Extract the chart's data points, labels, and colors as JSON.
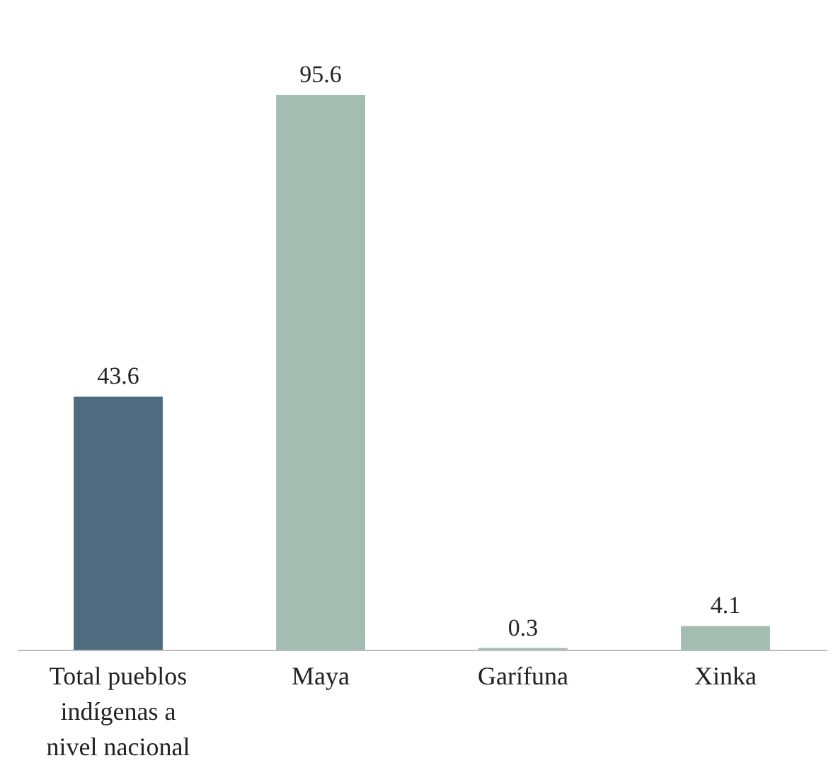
{
  "chart_data": {
    "type": "bar",
    "categories": [
      "Total pueblos indígenas a nivel nacional",
      "Maya",
      "Garífuna",
      "Xinka"
    ],
    "values": [
      43.6,
      95.6,
      0.3,
      4.1
    ],
    "colors": [
      "#4f6b80",
      "#a3bdb3",
      "#a3bdb3",
      "#a3bdb3"
    ],
    "data_labels": true
  }
}
